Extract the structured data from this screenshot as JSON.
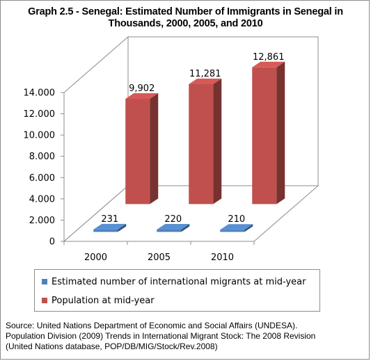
{
  "title_lines": [
    "Graph 2.5 - Senegal: Estimated Number of Immigrants in Senegal in",
    "Thousands, 2000, 2005, and 2010"
  ],
  "chart_data": {
    "type": "bar",
    "title": "Graph 2.5 - Senegal: Estimated Number of Immigrants in Senegal in Thousands, 2000, 2005, and 2010",
    "categories": [
      "2000",
      "2005",
      "2010"
    ],
    "series": [
      {
        "name": "Estimated number of international migrants at mid-year",
        "values": [
          231,
          220,
          210
        ],
        "labels": [
          "231",
          "220",
          "210"
        ],
        "color": "#4f81bd"
      },
      {
        "name": "Population at mid-year",
        "values": [
          9902,
          11281,
          12861
        ],
        "labels": [
          "9,902",
          "11,281",
          "12,861"
        ],
        "color": "#c0504d"
      }
    ],
    "y_ticks": [
      {
        "value": 0,
        "label": "0"
      },
      {
        "value": 2000,
        "label": "2.000"
      },
      {
        "value": 4000,
        "label": "4.000"
      },
      {
        "value": 6000,
        "label": "6.000"
      },
      {
        "value": 8000,
        "label": "8.000"
      },
      {
        "value": 10000,
        "label": "10.000"
      },
      {
        "value": 12000,
        "label": "12.000"
      },
      {
        "value": 14000,
        "label": "14.000"
      }
    ],
    "ylim": [
      0,
      14000
    ],
    "style": "3d-clustered-column",
    "grid": false,
    "legend_position": "bottom"
  },
  "source_lines": [
    "Source: United Nations Department of Economic and Social Affairs (UNDESA).",
    "Population Division  (2009) Trends in International Migrant Stock: The 2008 Revision",
    "(United Nations database, POP/DB/MIG/Stock/Rev.2008)"
  ]
}
